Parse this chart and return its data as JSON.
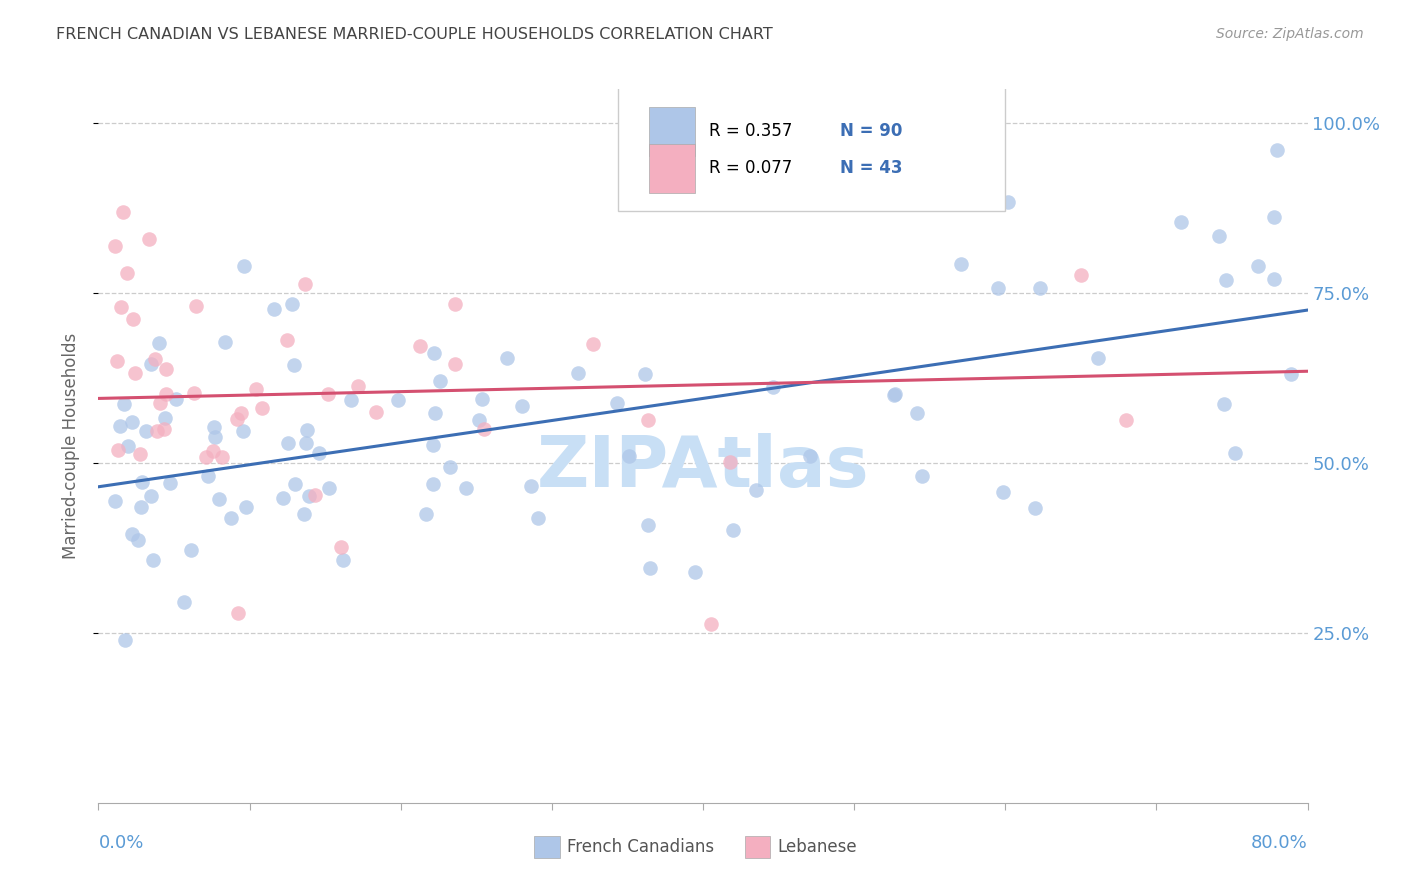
{
  "title": "FRENCH CANADIAN VS LEBANESE MARRIED-COUPLE HOUSEHOLDS CORRELATION CHART",
  "source": "Source: ZipAtlas.com",
  "ylabel": "Married-couple Households",
  "french_color": "#aec6e8",
  "french_line_color": "#3c6eb4",
  "lebanese_color": "#f4afc0",
  "lebanese_line_color": "#d45070",
  "legend_text_color": "#3c6eb4",
  "legend_N_color": "#3c6eb4",
  "watermark_text": "ZIPAtlas",
  "watermark_color": "#c8dff5",
  "background_color": "#ffffff",
  "grid_color": "#cccccc",
  "title_color": "#444444",
  "tick_label_color": "#5b9bd5",
  "ytick_vals": [
    0.25,
    0.5,
    0.75,
    1.0
  ],
  "ytick_labels": [
    "25.0%",
    "50.0%",
    "75.0%",
    "100.0%"
  ],
  "xlim": [
    0.0,
    0.8
  ],
  "ylim": [
    0.0,
    1.05
  ],
  "french_line_y0": 0.465,
  "french_line_y1": 0.725,
  "lebanese_line_y0": 0.595,
  "lebanese_line_y1": 0.635,
  "legend_label1": "R = 0.357",
  "legend_n1": "N = 90",
  "legend_label2": "R = 0.077",
  "legend_n2": "N = 43"
}
